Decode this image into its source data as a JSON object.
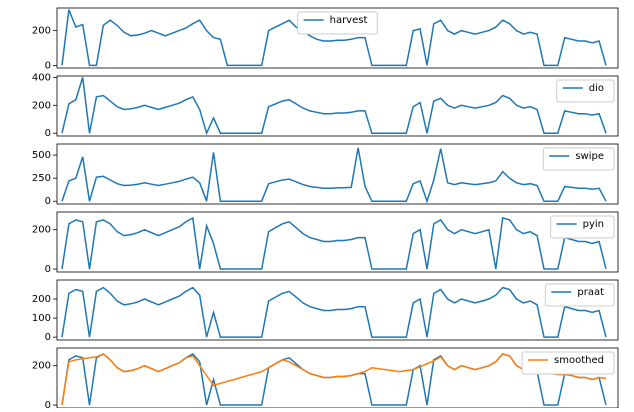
{
  "chart_data": [
    {
      "type": "line",
      "legend": "upper center",
      "ylim": [
        -15,
        330
      ],
      "yticks": [
        0,
        200
      ],
      "series": [
        {
          "name": "harvest",
          "color": "#1f77b4",
          "values": [
            0,
            320,
            220,
            235,
            0,
            0,
            230,
            260,
            230,
            190,
            170,
            175,
            185,
            200,
            185,
            170,
            185,
            200,
            215,
            240,
            260,
            200,
            160,
            150,
            0,
            0,
            0,
            0,
            0,
            0,
            200,
            220,
            240,
            260,
            220,
            200,
            170,
            150,
            140,
            140,
            145,
            145,
            150,
            160,
            160,
            0,
            0,
            0,
            0,
            0,
            0,
            200,
            210,
            0,
            240,
            260,
            200,
            180,
            200,
            190,
            180,
            190,
            200,
            220,
            260,
            240,
            200,
            180,
            190,
            180,
            0,
            0,
            0,
            160,
            150,
            140,
            140,
            130,
            140,
            0
          ]
        }
      ]
    },
    {
      "type": "line",
      "legend": "upper right",
      "ylim": [
        -20,
        410
      ],
      "yticks": [
        0,
        200,
        400
      ],
      "series": [
        {
          "name": "dio",
          "color": "#1f77b4",
          "values": [
            0,
            210,
            240,
            400,
            0,
            260,
            270,
            230,
            190,
            170,
            175,
            185,
            200,
            185,
            170,
            185,
            200,
            215,
            240,
            260,
            170,
            0,
            110,
            0,
            0,
            0,
            0,
            0,
            0,
            0,
            190,
            210,
            230,
            240,
            210,
            180,
            160,
            150,
            140,
            140,
            145,
            145,
            150,
            160,
            160,
            0,
            0,
            0,
            0,
            0,
            0,
            190,
            220,
            0,
            230,
            250,
            200,
            180,
            200,
            190,
            180,
            190,
            200,
            220,
            270,
            250,
            200,
            180,
            190,
            170,
            0,
            0,
            0,
            160,
            150,
            140,
            140,
            130,
            140,
            0
          ]
        }
      ]
    },
    {
      "type": "line",
      "legend": "upper right",
      "ylim": [
        -30,
        620
      ],
      "yticks": [
        0,
        250,
        500
      ],
      "series": [
        {
          "name": "swipe",
          "color": "#1f77b4",
          "values": [
            0,
            220,
            250,
            480,
            0,
            260,
            270,
            230,
            190,
            170,
            175,
            185,
            200,
            185,
            170,
            185,
            200,
            215,
            240,
            260,
            200,
            0,
            530,
            0,
            0,
            0,
            0,
            0,
            0,
            0,
            190,
            210,
            230,
            240,
            210,
            180,
            160,
            150,
            140,
            140,
            145,
            145,
            150,
            580,
            160,
            0,
            0,
            0,
            0,
            0,
            0,
            190,
            220,
            0,
            230,
            570,
            200,
            180,
            200,
            190,
            180,
            190,
            200,
            220,
            320,
            250,
            200,
            180,
            190,
            170,
            0,
            0,
            0,
            160,
            150,
            140,
            140,
            130,
            140,
            0
          ]
        }
      ]
    },
    {
      "type": "line",
      "legend": "upper right",
      "ylim": [
        -15,
        290
      ],
      "yticks": [
        0,
        200
      ],
      "series": [
        {
          "name": "pyin",
          "color": "#1f77b4",
          "values": [
            0,
            230,
            250,
            240,
            0,
            240,
            250,
            230,
            190,
            170,
            175,
            185,
            200,
            185,
            170,
            185,
            200,
            215,
            240,
            260,
            0,
            220,
            130,
            0,
            0,
            0,
            0,
            0,
            0,
            0,
            190,
            210,
            230,
            240,
            210,
            180,
            160,
            150,
            140,
            140,
            145,
            145,
            150,
            160,
            160,
            0,
            0,
            0,
            0,
            0,
            0,
            180,
            200,
            0,
            230,
            250,
            200,
            180,
            200,
            190,
            180,
            190,
            200,
            0,
            260,
            250,
            200,
            180,
            190,
            170,
            0,
            0,
            0,
            160,
            150,
            140,
            140,
            130,
            140,
            0
          ]
        }
      ]
    },
    {
      "type": "line",
      "legend": "upper right",
      "ylim": [
        -15,
        300
      ],
      "yticks": [
        0,
        100,
        200
      ],
      "series": [
        {
          "name": "praat",
          "color": "#1f77b4",
          "values": [
            0,
            230,
            250,
            240,
            0,
            240,
            260,
            230,
            190,
            170,
            175,
            185,
            200,
            185,
            170,
            185,
            200,
            215,
            240,
            260,
            220,
            0,
            130,
            0,
            0,
            0,
            0,
            0,
            0,
            0,
            190,
            210,
            230,
            240,
            210,
            180,
            160,
            150,
            140,
            140,
            145,
            145,
            150,
            160,
            160,
            0,
            0,
            0,
            0,
            0,
            0,
            180,
            200,
            0,
            230,
            250,
            200,
            180,
            200,
            190,
            180,
            190,
            200,
            220,
            260,
            250,
            200,
            180,
            190,
            170,
            0,
            0,
            0,
            160,
            150,
            140,
            140,
            130,
            140,
            0
          ]
        }
      ]
    },
    {
      "type": "line",
      "legend": "upper right",
      "ylim": [
        -15,
        290
      ],
      "yticks": [
        0,
        200
      ],
      "series": [
        {
          "color": "#1f77b4",
          "values": [
            0,
            230,
            250,
            240,
            0,
            240,
            260,
            230,
            190,
            170,
            175,
            185,
            200,
            185,
            170,
            185,
            200,
            215,
            240,
            260,
            220,
            0,
            130,
            0,
            0,
            0,
            0,
            0,
            0,
            0,
            190,
            210,
            230,
            240,
            210,
            180,
            160,
            150,
            140,
            140,
            145,
            145,
            150,
            160,
            160,
            0,
            0,
            0,
            0,
            0,
            0,
            180,
            200,
            0,
            230,
            250,
            200,
            180,
            200,
            190,
            180,
            190,
            200,
            220,
            260,
            250,
            200,
            180,
            190,
            170,
            0,
            0,
            0,
            160,
            150,
            140,
            140,
            130,
            140,
            0
          ]
        },
        {
          "name": "smoothed",
          "color": "#ff7f0e",
          "values": [
            0,
            220,
            230,
            235,
            240,
            245,
            260,
            230,
            190,
            170,
            175,
            185,
            200,
            185,
            170,
            185,
            200,
            215,
            240,
            250,
            200,
            150,
            100,
            110,
            120,
            130,
            140,
            150,
            160,
            170,
            190,
            210,
            230,
            220,
            200,
            180,
            160,
            150,
            140,
            140,
            145,
            145,
            150,
            160,
            170,
            190,
            185,
            180,
            175,
            170,
            175,
            180,
            195,
            210,
            225,
            245,
            200,
            180,
            200,
            190,
            180,
            190,
            200,
            220,
            260,
            250,
            200,
            180,
            190,
            170,
            165,
            160,
            155,
            155,
            150,
            140,
            140,
            130,
            140,
            135
          ]
        }
      ]
    }
  ]
}
